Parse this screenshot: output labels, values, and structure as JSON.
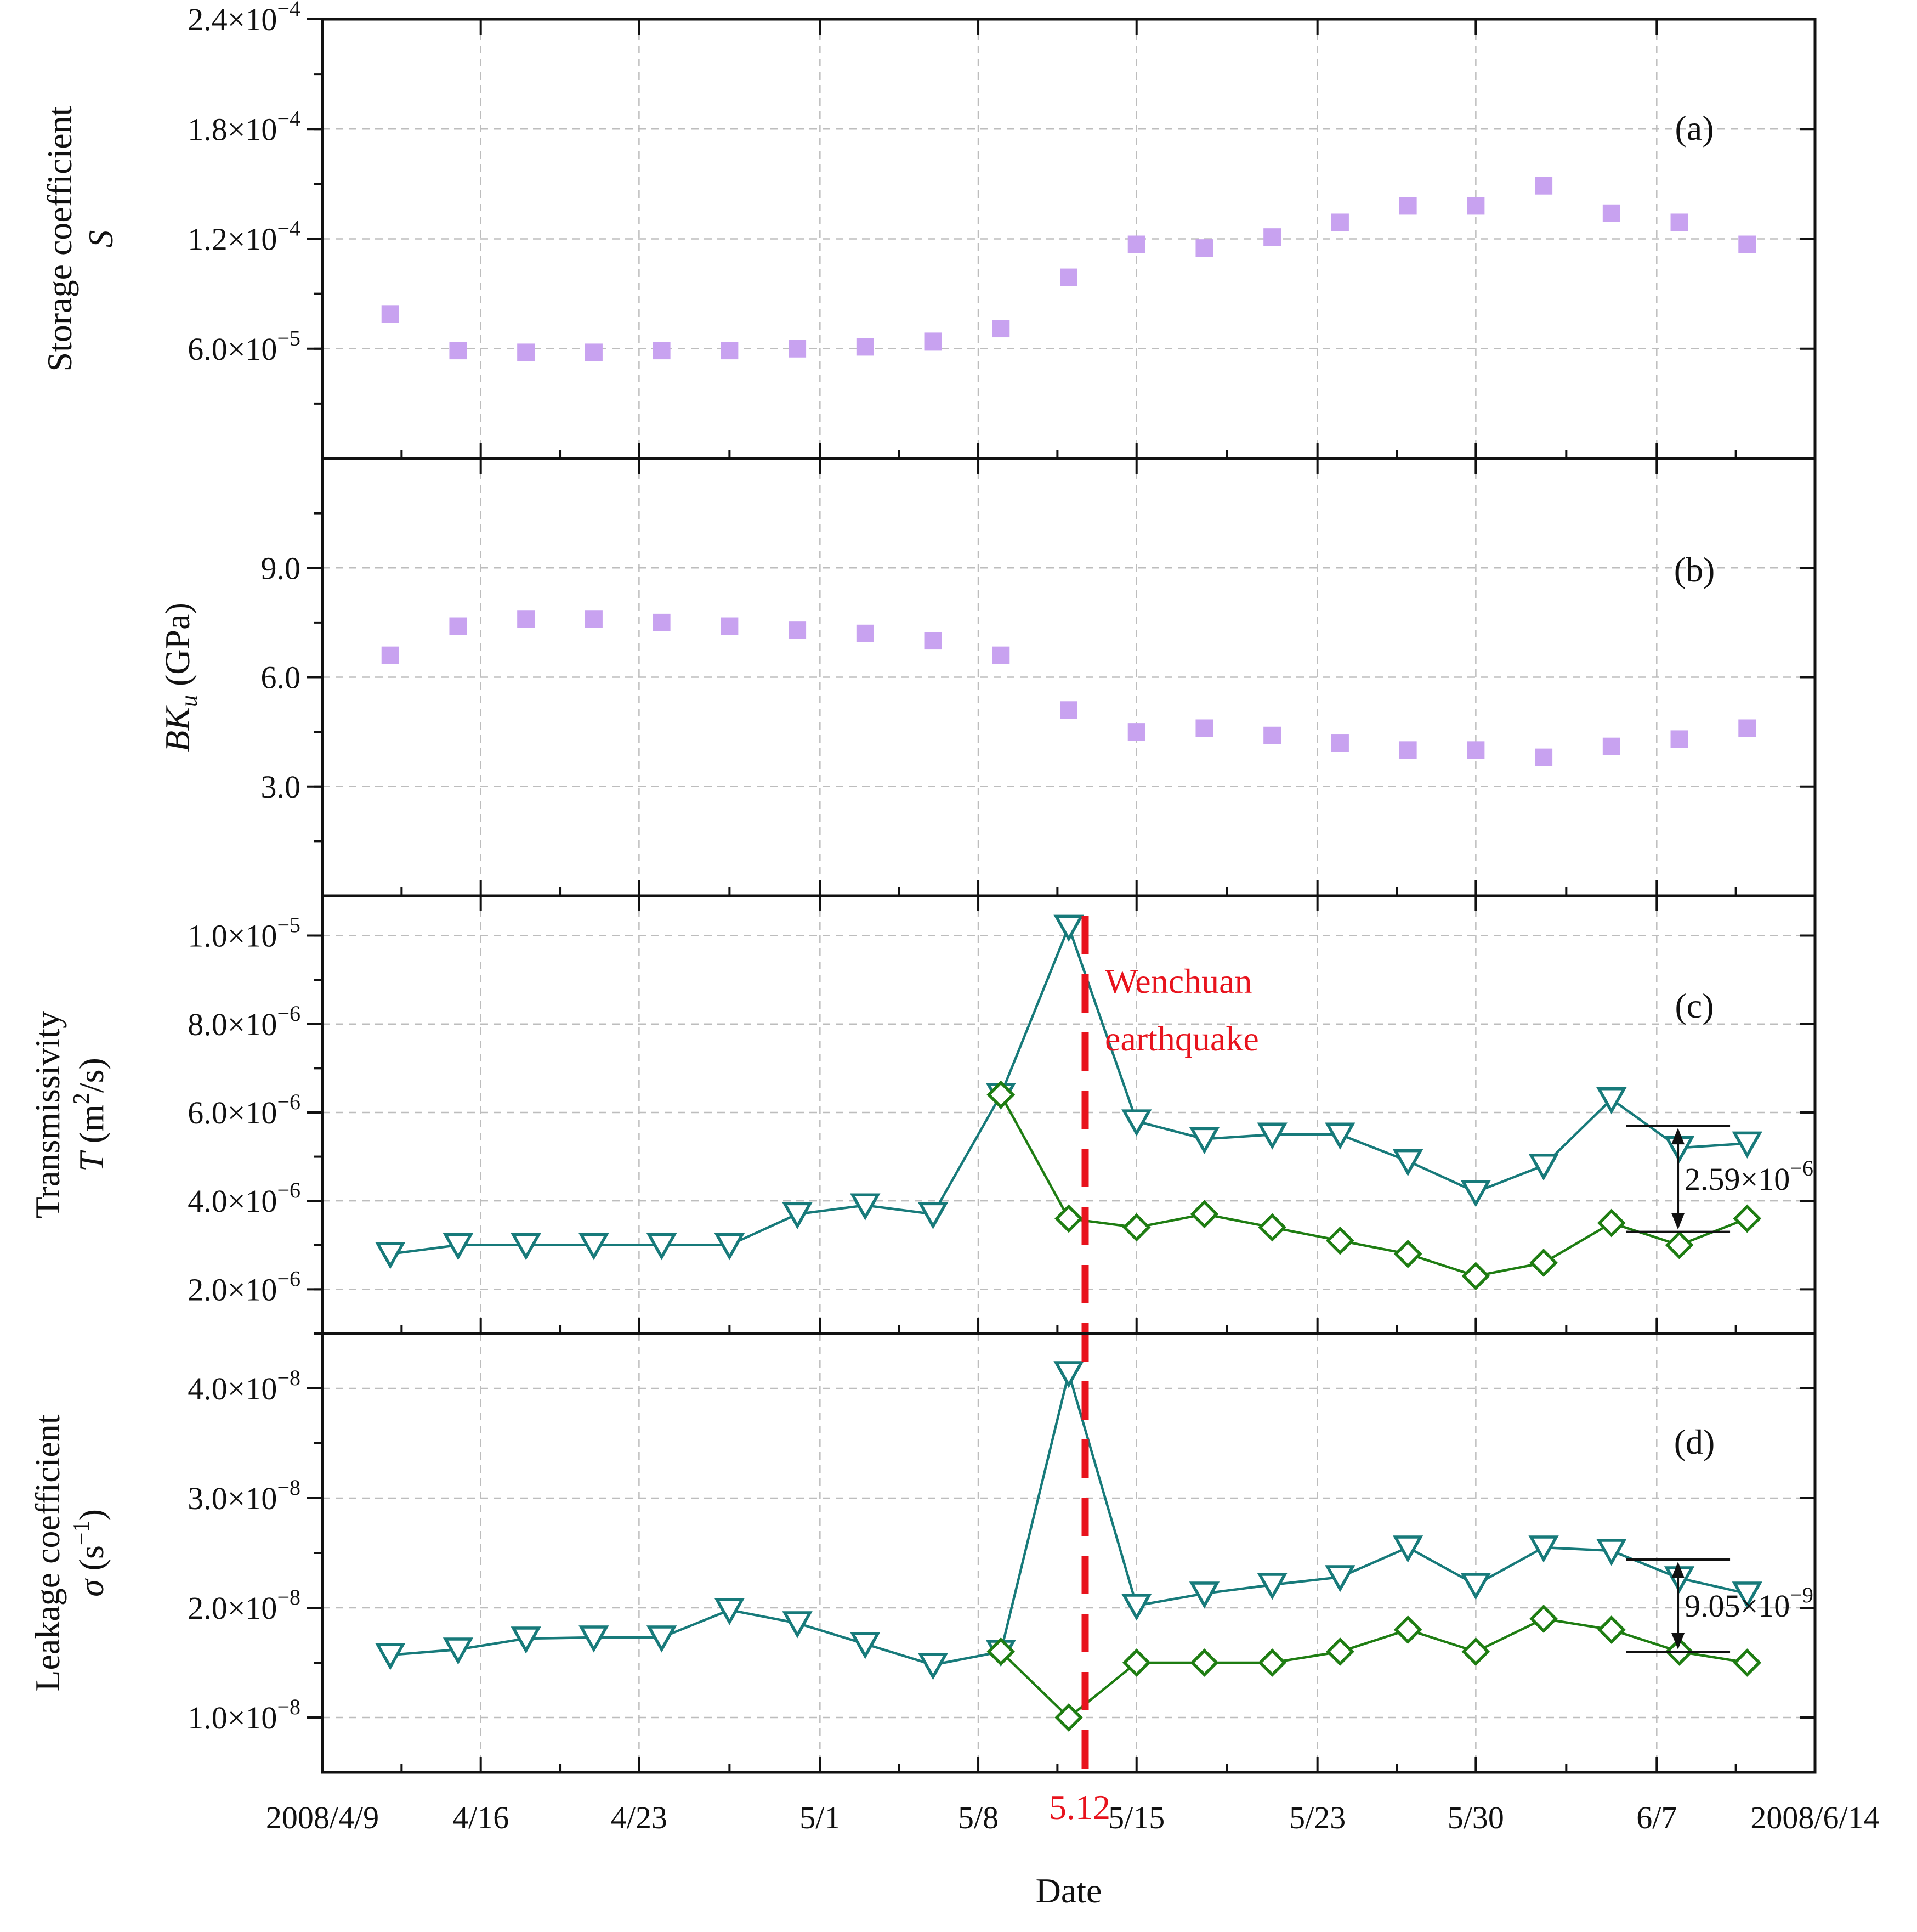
{
  "colors": {
    "scatter": "#c8a2f0",
    "triangle": "#177a7a",
    "diamond": "#1e7d12",
    "earthquake": "#e8131d",
    "axis": "#111111"
  },
  "x_axis": {
    "label": "Date",
    "min": 0,
    "max": 66,
    "ticks": [
      {
        "v": 0,
        "label": "2008/4/9"
      },
      {
        "v": 7,
        "label": "4/16"
      },
      {
        "v": 14,
        "label": "4/23"
      },
      {
        "v": 22,
        "label": "5/1"
      },
      {
        "v": 29,
        "label": "5/8"
      },
      {
        "v": 36,
        "label": "5/15"
      },
      {
        "v": 44,
        "label": "5/23"
      },
      {
        "v": 51,
        "label": "5/30"
      },
      {
        "v": 59,
        "label": "6/7"
      },
      {
        "v": 66,
        "label": "2008/6/14"
      }
    ],
    "earthquake_label": "5.12",
    "earthquake_day": 33
  },
  "chart_data": [
    {
      "type": "scatter",
      "panel": "(a)",
      "ylabel_line1": "Storage coefficient",
      "ylabel_line2": "S",
      "ylim": [
        0,
        0.00024
      ],
      "yticks": [
        {
          "v": 6e-05,
          "mant": "6.0×10",
          "exp": "−5"
        },
        {
          "v": 0.00012,
          "mant": "1.2×10",
          "exp": "−4"
        },
        {
          "v": 0.00018,
          "mant": "1.8×10",
          "exp": "−4"
        },
        {
          "v": 0.00024,
          "mant": "2.4×10",
          "exp": "−4"
        }
      ],
      "series": [
        {
          "name": "S",
          "x": [
            3,
            6,
            9,
            12,
            15,
            18,
            21,
            24,
            27,
            30,
            33,
            36,
            39,
            42,
            45,
            48,
            51,
            54,
            57,
            60,
            63
          ],
          "values": [
            7.9e-05,
            5.9e-05,
            5.8e-05,
            5.8e-05,
            5.9e-05,
            5.9e-05,
            6e-05,
            6.1e-05,
            6.4e-05,
            7.1e-05,
            9.9e-05,
            0.000117,
            0.000115,
            0.000121,
            0.000129,
            0.000138,
            0.000138,
            0.000149,
            0.000134,
            0.000129,
            0.000117
          ]
        }
      ]
    },
    {
      "type": "scatter",
      "panel": "(b)",
      "ylabel_italic": "BK",
      "ylabel_sub": "u",
      "ylabel_rest": " (GPa)",
      "ylim": [
        0,
        12
      ],
      "yticks": [
        {
          "v": 3,
          "label": "3.0"
        },
        {
          "v": 6,
          "label": "6.0"
        },
        {
          "v": 9,
          "label": "9.0"
        }
      ],
      "series": [
        {
          "name": "BKu",
          "x": [
            3,
            6,
            9,
            12,
            15,
            18,
            21,
            24,
            27,
            30,
            33,
            36,
            39,
            42,
            45,
            48,
            51,
            54,
            57,
            60,
            63
          ],
          "values": [
            6.6,
            7.4,
            7.6,
            7.6,
            7.5,
            7.4,
            7.3,
            7.2,
            7.0,
            6.6,
            5.1,
            4.5,
            4.6,
            4.4,
            4.2,
            4.0,
            4.0,
            3.8,
            4.1,
            4.3,
            4.6
          ]
        }
      ]
    },
    {
      "type": "line",
      "panel": "(c)",
      "ylabel_line1": "Transmissivity",
      "ylabel_line2_italic": "T",
      "ylabel_line2_rest": " (m",
      "ylabel_line2_sup": "2",
      "ylabel_line2_tail": "/s)",
      "ylim": [
        1e-06,
        1.09e-05
      ],
      "yticks": [
        {
          "v": 2e-06,
          "mant": "2.0×10",
          "exp": "−6"
        },
        {
          "v": 4e-06,
          "mant": "4.0×10",
          "exp": "−6"
        },
        {
          "v": 6e-06,
          "mant": "6.0×10",
          "exp": "−6"
        },
        {
          "v": 8e-06,
          "mant": "8.0×10",
          "exp": "−6"
        },
        {
          "v": 1e-05,
          "mant": "1.0×10",
          "exp": "−5"
        }
      ],
      "series": [
        {
          "name": "T (triangle)",
          "marker": "triangle",
          "x": [
            3,
            6,
            9,
            12,
            15,
            18,
            21,
            24,
            27,
            30,
            33,
            36,
            39,
            42,
            45,
            48,
            51,
            54,
            57,
            60,
            63
          ],
          "values": [
            2.8e-06,
            3e-06,
            3e-06,
            3e-06,
            3e-06,
            3e-06,
            3.7e-06,
            3.9e-06,
            3.7e-06,
            6.4e-06,
            1.02e-05,
            5.8e-06,
            5.4e-06,
            5.5e-06,
            5.5e-06,
            4.9e-06,
            4.2e-06,
            4.8e-06,
            6.3e-06,
            5.2e-06,
            5.3e-06
          ]
        },
        {
          "name": "T (diamond)",
          "marker": "diamond",
          "x": [
            30,
            33,
            36,
            39,
            42,
            45,
            48,
            51,
            54,
            57,
            60,
            63
          ],
          "values": [
            6.4e-06,
            3.6e-06,
            3.4e-06,
            3.7e-06,
            3.4e-06,
            3.1e-06,
            2.8e-06,
            2.3e-06,
            2.6e-06,
            3.5e-06,
            3e-06,
            3.6e-06
          ]
        }
      ],
      "annotation": {
        "mant": "2.59×10",
        "exp": "−6",
        "top": 5.7e-06,
        "bottom": 3.3e-06,
        "x": 58
      }
    },
    {
      "type": "line",
      "panel": "(d)",
      "ylabel_line1": "Leakage coefficient",
      "ylabel_line2_italic": "σ",
      "ylabel_line2_rest": " (s",
      "ylabel_line2_sup": "−1",
      "ylabel_line2_tail": ")",
      "ylim": [
        5e-09,
        4.5e-08
      ],
      "yticks": [
        {
          "v": 1e-08,
          "mant": "1.0×10",
          "exp": "−8"
        },
        {
          "v": 2e-08,
          "mant": "2.0×10",
          "exp": "−8"
        },
        {
          "v": 3e-08,
          "mant": "3.0×10",
          "exp": "−8"
        },
        {
          "v": 4e-08,
          "mant": "4.0×10",
          "exp": "−8"
        }
      ],
      "series": [
        {
          "name": "σ (triangle)",
          "marker": "triangle",
          "x": [
            3,
            6,
            9,
            12,
            15,
            18,
            21,
            24,
            27,
            30,
            33,
            36,
            39,
            42,
            45,
            48,
            51,
            54,
            57,
            60,
            63
          ],
          "values": [
            1.57e-08,
            1.62e-08,
            1.72e-08,
            1.73e-08,
            1.73e-08,
            1.98e-08,
            1.86e-08,
            1.67e-08,
            1.48e-08,
            1.6e-08,
            4.14e-08,
            2.02e-08,
            2.13e-08,
            2.21e-08,
            2.28e-08,
            2.55e-08,
            2.21e-08,
            2.55e-08,
            2.52e-08,
            2.27e-08,
            2.13e-08
          ]
        },
        {
          "name": "σ (diamond)",
          "marker": "diamond",
          "x": [
            30,
            33,
            36,
            39,
            42,
            45,
            48,
            51,
            54,
            57,
            60,
            63
          ],
          "values": [
            1.6e-08,
            1e-08,
            1.5e-08,
            1.5e-08,
            1.5e-08,
            1.6e-08,
            1.8e-08,
            1.6e-08,
            1.9e-08,
            1.8e-08,
            1.6e-08,
            1.5e-08
          ]
        }
      ],
      "annotation": {
        "mant": "9.05×10",
        "exp": "−9",
        "top": 2.44e-08,
        "bottom": 1.6e-08,
        "x": 58
      }
    }
  ],
  "earthquake_text_line1": "Wenchuan",
  "earthquake_text_line2": "earthquake"
}
